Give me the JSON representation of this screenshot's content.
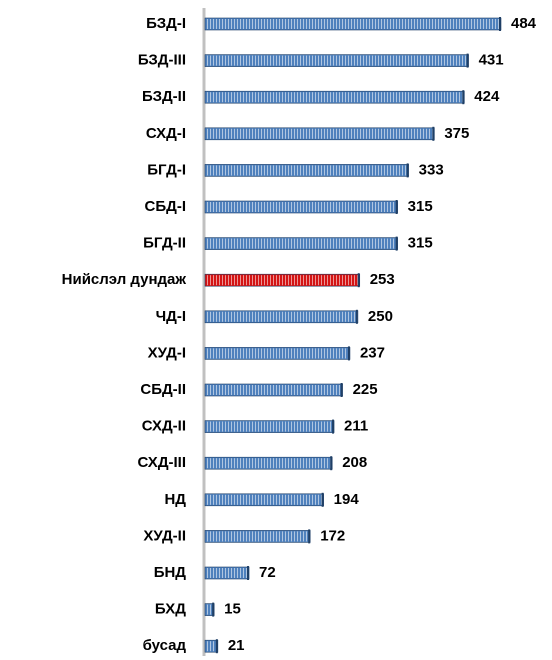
{
  "chart_data": {
    "type": "bar",
    "orientation": "horizontal",
    "categories": [
      "БЗД-I",
      "БЗД-III",
      "БЗД-II",
      "СХД-I",
      "БГД-I",
      "СБД-I",
      "БГД-II",
      "Нийслэл дундаж",
      "ЧД-I",
      "ХУД-I",
      "СБД-II",
      "СХД-II",
      "СХД-III",
      "НД",
      "ХУД-II",
      "БНД",
      "БХД",
      "бусад"
    ],
    "values": [
      484,
      431,
      424,
      375,
      333,
      315,
      315,
      253,
      250,
      237,
      225,
      211,
      208,
      194,
      172,
      72,
      15,
      21
    ],
    "colors": [
      "#4f81bd",
      "#4f81bd",
      "#4f81bd",
      "#4f81bd",
      "#4f81bd",
      "#4f81bd",
      "#4f81bd",
      "#d41414",
      "#4f81bd",
      "#4f81bd",
      "#4f81bd",
      "#4f81bd",
      "#4f81bd",
      "#4f81bd",
      "#4f81bd",
      "#4f81bd",
      "#4f81bd",
      "#4f81bd"
    ]
  }
}
